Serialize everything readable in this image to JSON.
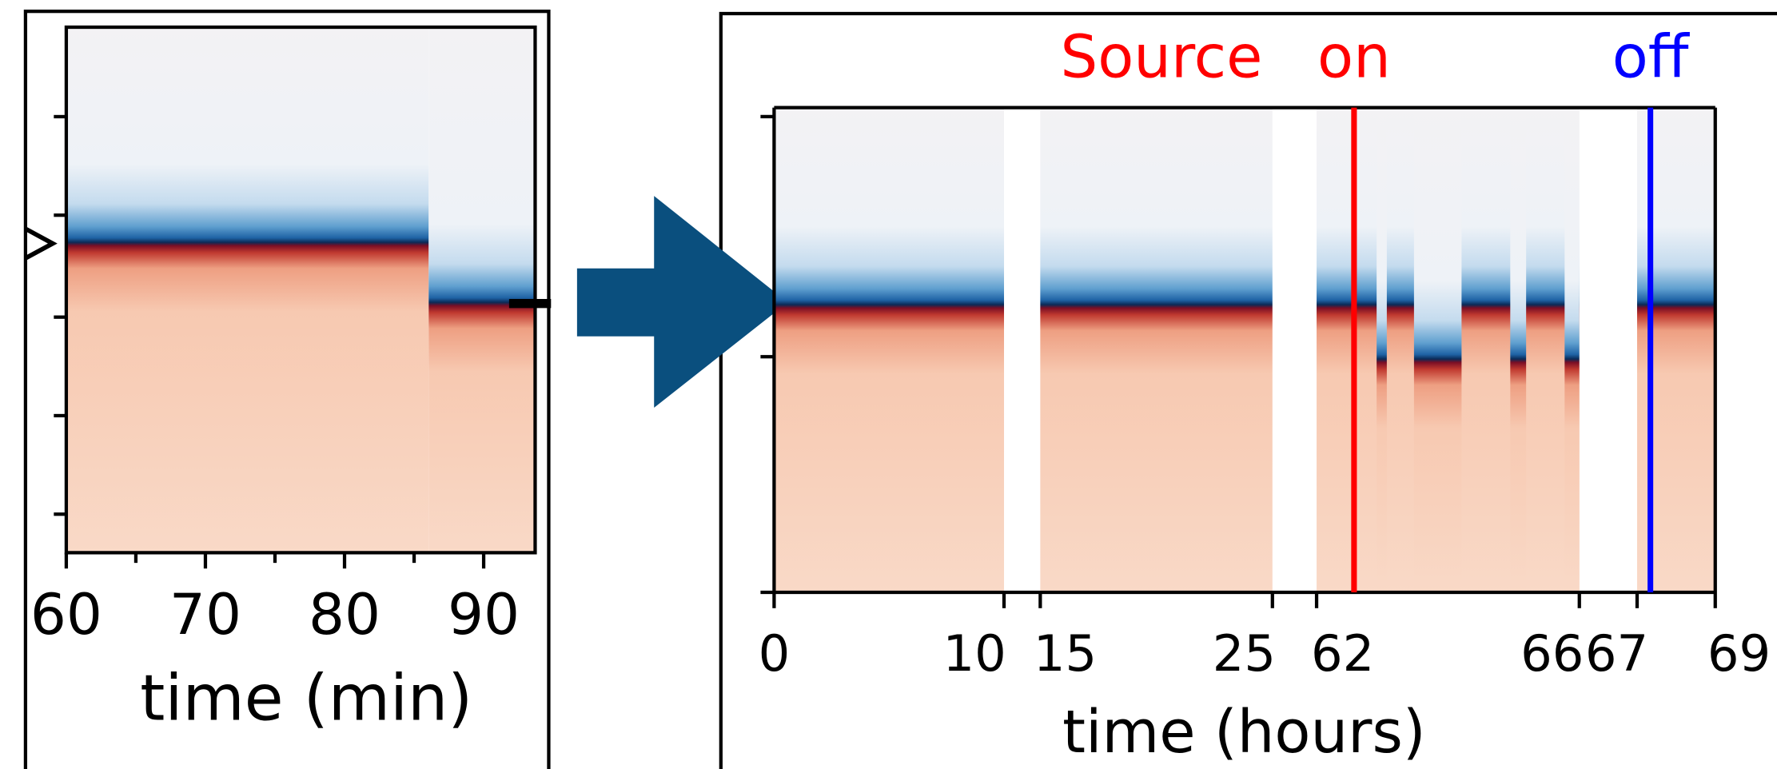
{
  "chart_data": [
    {
      "type": "heatmap",
      "xlabel": "time (min)",
      "xlim": [
        60,
        93.7
      ],
      "xticks": [
        60,
        70,
        80,
        90
      ],
      "xminorticks": [
        65,
        75,
        85
      ]
    },
    {
      "type": "heatmap",
      "xlabel": "time (hours)",
      "xticks": [
        0,
        10,
        15,
        25,
        62,
        66,
        67,
        69
      ],
      "segments": [
        [
          0,
          10
        ],
        [
          15,
          25
        ],
        [
          62,
          66
        ],
        [
          67,
          69
        ]
      ],
      "annotations": [
        {
          "text": "Source",
          "color": "#ff0000"
        },
        {
          "text": "on",
          "color": "#ff0000",
          "x": 62.57
        },
        {
          "text": "off",
          "color": "#0000ff",
          "x": 67.34
        }
      ]
    }
  ]
}
